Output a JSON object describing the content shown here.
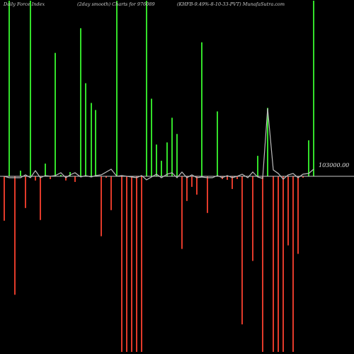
{
  "header": {
    "left": "Daily Force  Index",
    "middle": "(2day smooth) Charts for 976089",
    "right": "(KHFB-9.49%-8-10-33-PVT) MunafaSutra.com"
  },
  "chart_data": {
    "type": "bar",
    "title": "",
    "baseline_label": "103000.00",
    "colors": {
      "up": "#33e02a",
      "down": "#e23a2a",
      "line": "#bdbdbd",
      "baseline": "#c8c8c8",
      "background": "#000000"
    },
    "ylim": [
      -250,
      250
    ],
    "x": [
      6,
      13,
      21,
      29,
      36,
      43,
      50,
      57,
      64,
      71,
      78,
      86,
      93,
      99,
      106,
      114,
      121,
      129,
      135,
      143,
      150,
      157,
      165,
      172,
      179,
      186,
      193,
      200,
      207,
      214,
      221,
      228,
      236,
      243,
      250,
      257,
      264,
      271,
      278,
      285,
      293,
      300,
      307,
      314,
      321,
      328,
      335,
      342,
      350,
      357,
      364,
      371,
      378,
      386,
      393,
      400,
      407,
      414,
      421,
      428,
      436,
      443
    ],
    "values": [
      -63,
      249,
      -168,
      8,
      -45,
      249,
      -6,
      -62,
      18,
      -4,
      175,
      2,
      -6,
      6,
      -8,
      210,
      132,
      104,
      94,
      -85,
      -2,
      -48,
      249,
      -249,
      -249,
      -249,
      -249,
      -249,
      249,
      110,
      45,
      22,
      48,
      83,
      60,
      -103,
      -35,
      -15,
      -26,
      190,
      -52,
      0,
      92,
      -4,
      -5,
      -18,
      -4,
      -210,
      0,
      -120,
      29,
      -249,
      97,
      -249,
      -249,
      -249,
      -98,
      -249,
      -110,
      -2,
      51,
      249
    ],
    "line": [
      0,
      -2,
      -2,
      -2,
      2,
      -2,
      8,
      -2,
      1,
      0,
      1,
      5,
      -2,
      2,
      5,
      -1,
      1,
      -1,
      1,
      2,
      6,
      10,
      0,
      1,
      0,
      -1,
      -2,
      1,
      -5,
      -1,
      3,
      -2,
      3,
      5,
      -2,
      6,
      -2,
      2,
      -2,
      -1,
      -2,
      -2,
      1,
      -2,
      1,
      -2,
      0,
      3,
      -2,
      6,
      -1,
      -3,
      96,
      9,
      4,
      -4,
      2,
      4,
      -2,
      3,
      4,
      10
    ]
  }
}
